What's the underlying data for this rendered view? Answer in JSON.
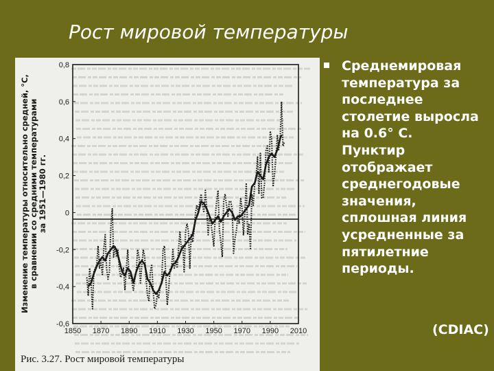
{
  "slide": {
    "title": "Рост мировой температуры",
    "bullet_lines": [
      "Среднемировая",
      "температура за",
      "последнее",
      "столетие выросла",
      "на 0.6° С.",
      "Пунктир",
      "отображает",
      "среднегодовые",
      "значения,",
      "сплошная линия",
      "усредненные за",
      "пятилетние",
      "периоды."
    ],
    "source": "(CDIAC)"
  },
  "figure": {
    "caption": "Рис. 3.27. Рост мировой температуры"
  },
  "colors": {
    "background": "#6b6b1a",
    "text": "#ffffff",
    "scan_paper": "#efefec",
    "ink": "#1a1a1a",
    "bleed_text": "#b9b9b6"
  },
  "chart_data": {
    "type": "line",
    "title": "",
    "xlabel": "",
    "ylabel": "Изменение температуры относительно средней, °С, в сравнении со средними температурами за 1951—1980 гг.",
    "ylabel_lines": [
      "Изменение температуры относительно средней, °С,",
      "в сравнении со средними температурами",
      "за 1951—1980 гг."
    ],
    "xlim": [
      1850,
      2010
    ],
    "ylim": [
      -0.6,
      0.8
    ],
    "x_ticks": [
      1850,
      1870,
      1890,
      1910,
      1930,
      1950,
      1970,
      1990,
      2010
    ],
    "x_tick_labels": [
      "1850",
      "1870",
      "1890",
      "1910",
      "1930",
      "1950",
      "1970",
      "1990",
      "2010"
    ],
    "y_ticks": [
      0.8,
      0.6,
      0.4,
      0.2,
      0,
      -0.2,
      -0.4,
      -0.6
    ],
    "y_tick_labels": [
      "0,8",
      "0,6",
      "0,4",
      "0,2",
      "0",
      "-0,2",
      "-0,4",
      "-0,6"
    ],
    "zero_line": true,
    "grid": false,
    "series": [
      {
        "style": "dotted",
        "x": [
          1860,
          1861,
          1862,
          1863,
          1864,
          1865,
          1866,
          1867,
          1868,
          1869,
          1870,
          1871,
          1872,
          1873,
          1874,
          1875,
          1876,
          1877,
          1878,
          1879,
          1880,
          1881,
          1882,
          1883,
          1884,
          1885,
          1886,
          1887,
          1888,
          1889,
          1890,
          1891,
          1892,
          1893,
          1894,
          1895,
          1896,
          1897,
          1898,
          1899,
          1900,
          1901,
          1902,
          1903,
          1904,
          1905,
          1906,
          1907,
          1908,
          1909,
          1910,
          1911,
          1912,
          1913,
          1914,
          1915,
          1916,
          1917,
          1918,
          1919,
          1920,
          1921,
          1922,
          1923,
          1924,
          1925,
          1926,
          1927,
          1928,
          1929,
          1930,
          1931,
          1932,
          1933,
          1934,
          1935,
          1936,
          1937,
          1938,
          1939,
          1940,
          1941,
          1942,
          1943,
          1944,
          1945,
          1946,
          1947,
          1948,
          1949,
          1950,
          1951,
          1952,
          1953,
          1954,
          1955,
          1956,
          1957,
          1958,
          1959,
          1960,
          1961,
          1962,
          1963,
          1964,
          1965,
          1966,
          1967,
          1968,
          1969,
          1970,
          1971,
          1972,
          1973,
          1974,
          1975,
          1976,
          1977,
          1978,
          1979,
          1980,
          1981,
          1982,
          1983,
          1984,
          1985,
          1986,
          1987,
          1988,
          1989,
          1990,
          1991,
          1992,
          1993,
          1994,
          1995,
          1996,
          1997,
          1998,
          1999,
          2000
        ],
        "y": [
          -0.35,
          -0.45,
          -0.3,
          -0.38,
          -0.52,
          -0.32,
          -0.3,
          -0.28,
          -0.18,
          -0.3,
          -0.26,
          -0.34,
          -0.2,
          -0.12,
          -0.3,
          -0.36,
          -0.32,
          -0.08,
          0.02,
          -0.24,
          -0.18,
          -0.24,
          -0.2,
          -0.3,
          -0.35,
          -0.33,
          -0.3,
          -0.42,
          -0.3,
          -0.2,
          -0.36,
          -0.33,
          -0.38,
          -0.42,
          -0.36,
          -0.32,
          -0.2,
          -0.24,
          -0.38,
          -0.28,
          -0.2,
          -0.24,
          -0.36,
          -0.45,
          -0.48,
          -0.32,
          -0.28,
          -0.42,
          -0.52,
          -0.5,
          -0.44,
          -0.46,
          -0.4,
          -0.38,
          -0.2,
          -0.18,
          -0.35,
          -0.5,
          -0.42,
          -0.3,
          -0.3,
          -0.2,
          -0.3,
          -0.26,
          -0.3,
          -0.2,
          -0.1,
          -0.2,
          -0.18,
          -0.32,
          -0.1,
          -0.06,
          -0.1,
          -0.3,
          -0.12,
          -0.16,
          -0.1,
          0.0,
          0.04,
          0.0,
          0.06,
          0.1,
          0.04,
          0.0,
          0.12,
          0.02,
          -0.12,
          -0.02,
          -0.06,
          -0.12,
          -0.18,
          -0.02,
          0.06,
          0.12,
          -0.1,
          -0.16,
          -0.24,
          0.06,
          0.1,
          0.04,
          -0.02,
          0.06,
          0.06,
          0.02,
          -0.22,
          -0.14,
          -0.1,
          -0.02,
          -0.06,
          0.08,
          0.02,
          -0.12,
          0.0,
          0.16,
          -0.12,
          -0.06,
          -0.2,
          0.1,
          0.04,
          0.16,
          0.2,
          0.3,
          0.1,
          0.32,
          0.08,
          0.08,
          0.16,
          0.34,
          0.36,
          0.22,
          0.44,
          0.4,
          0.14,
          0.2,
          0.3,
          0.42,
          0.34,
          0.4,
          0.6,
          0.36,
          0.38
        ]
      },
      {
        "style": "solid",
        "x": [
          1861,
          1863,
          1865,
          1867,
          1869,
          1871,
          1873,
          1875,
          1877,
          1879,
          1881,
          1883,
          1885,
          1887,
          1889,
          1891,
          1893,
          1895,
          1897,
          1899,
          1901,
          1903,
          1905,
          1907,
          1909,
          1911,
          1913,
          1915,
          1917,
          1919,
          1921,
          1923,
          1925,
          1927,
          1929,
          1931,
          1933,
          1935,
          1937,
          1939,
          1941,
          1943,
          1945,
          1947,
          1949,
          1951,
          1953,
          1955,
          1957,
          1959,
          1961,
          1963,
          1965,
          1967,
          1969,
          1971,
          1973,
          1975,
          1977,
          1979,
          1981,
          1983,
          1985,
          1987,
          1989,
          1991,
          1993,
          1995,
          1997,
          1998
        ],
        "y": [
          -0.4,
          -0.38,
          -0.33,
          -0.29,
          -0.26,
          -0.24,
          -0.26,
          -0.22,
          -0.2,
          -0.18,
          -0.2,
          -0.26,
          -0.32,
          -0.34,
          -0.3,
          -0.32,
          -0.38,
          -0.32,
          -0.28,
          -0.26,
          -0.28,
          -0.36,
          -0.38,
          -0.42,
          -0.44,
          -0.42,
          -0.38,
          -0.32,
          -0.34,
          -0.32,
          -0.28,
          -0.27,
          -0.24,
          -0.2,
          -0.18,
          -0.16,
          -0.14,
          -0.12,
          -0.04,
          0.0,
          0.06,
          0.05,
          0.02,
          -0.02,
          -0.06,
          -0.04,
          -0.02,
          -0.05,
          -0.02,
          0.0,
          0.02,
          0.0,
          -0.04,
          -0.02,
          -0.02,
          0.0,
          0.02,
          0.04,
          0.14,
          0.16,
          0.22,
          0.2,
          0.18,
          0.26,
          0.3,
          0.32,
          0.3,
          0.34,
          0.4,
          0.42
        ]
      }
    ]
  }
}
